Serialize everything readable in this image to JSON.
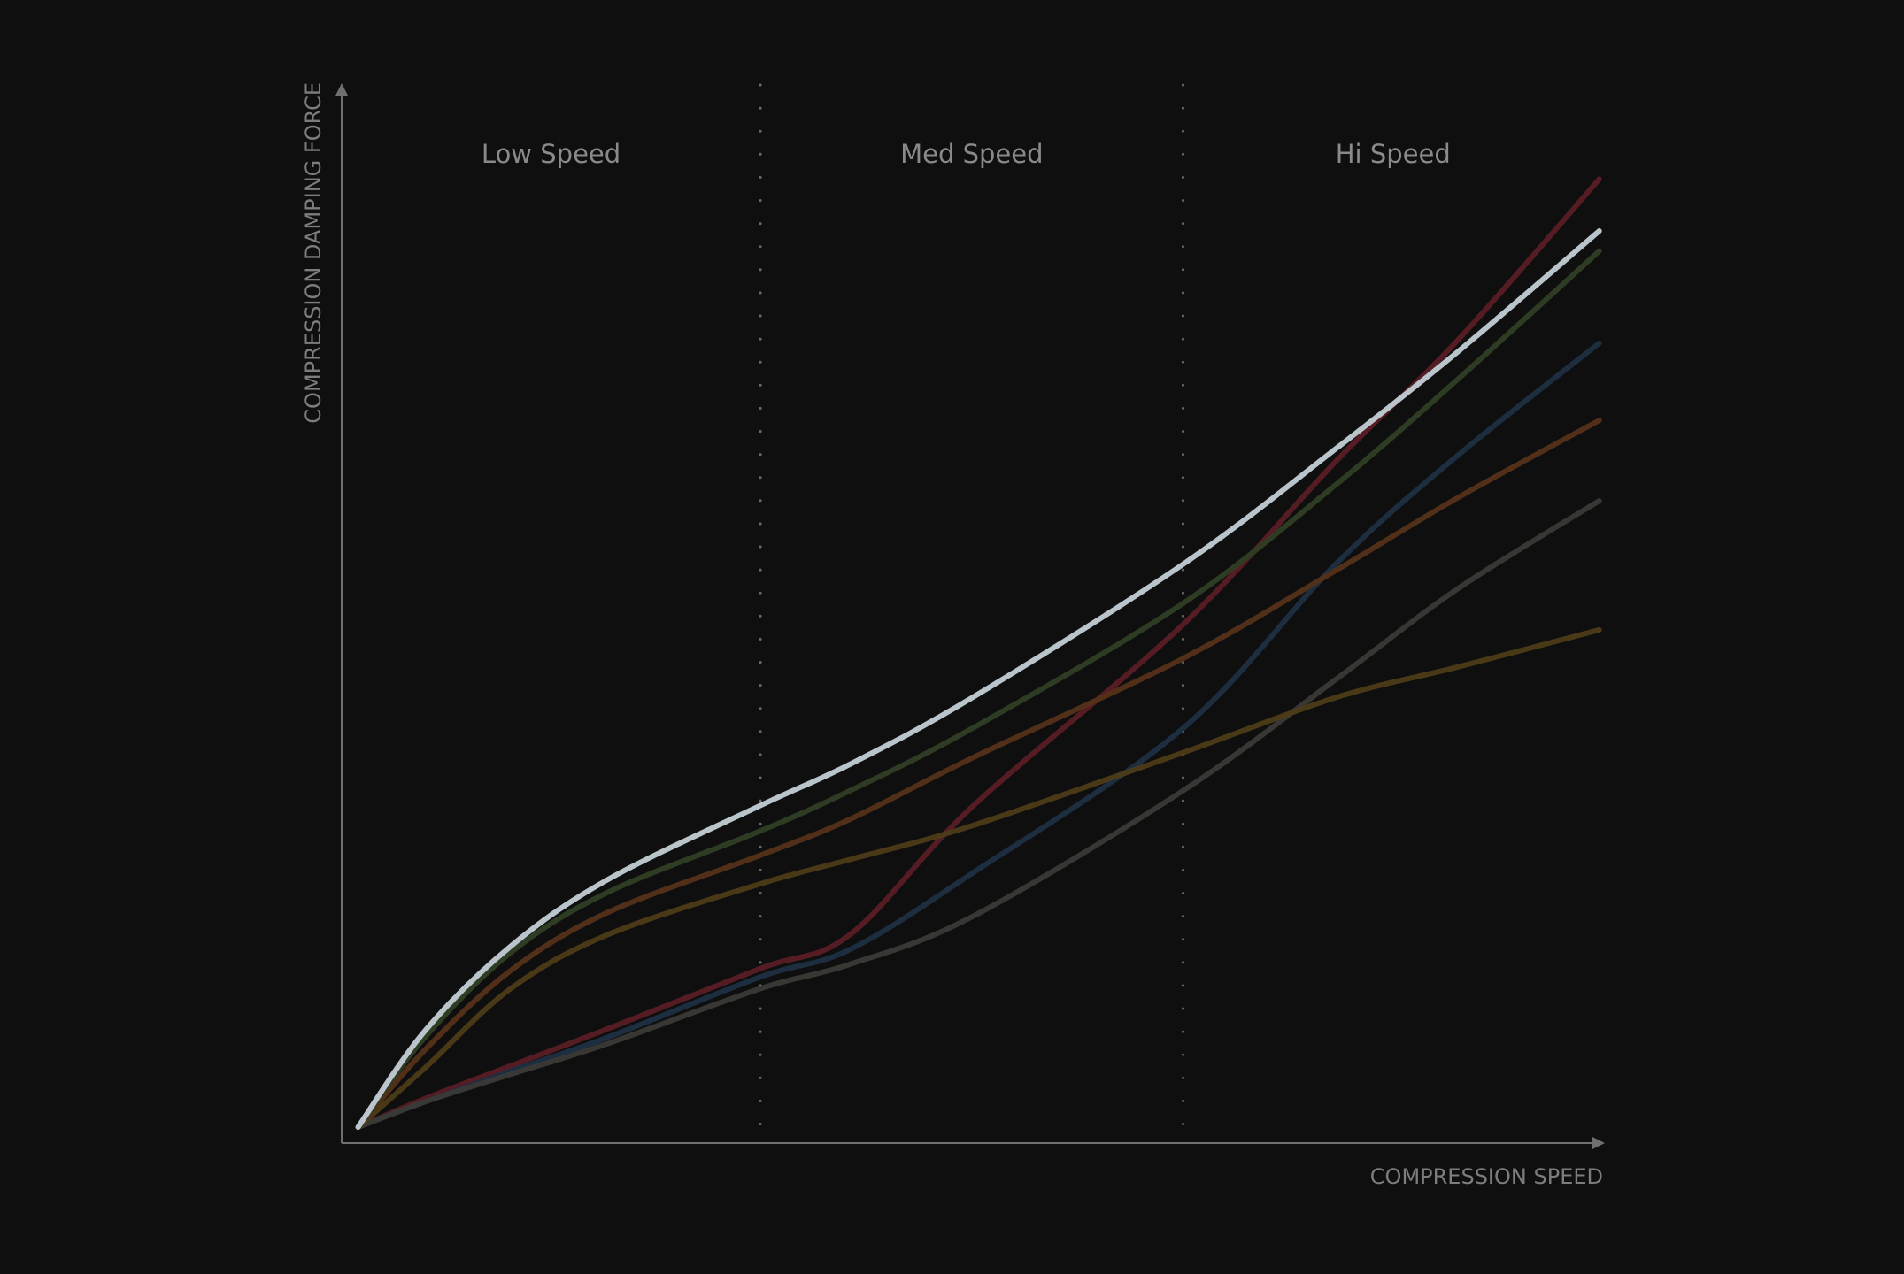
{
  "chart_data": {
    "type": "line",
    "x_label": "COMPRESSION SPEED",
    "y_label": "COMPRESSION DAMPING FORCE",
    "regions": [
      "Low Speed",
      "Med Speed",
      "Hi Speed"
    ],
    "dividers": [
      33.2,
      66.7
    ],
    "xlim": [
      0,
      100
    ],
    "ylim": [
      0,
      100
    ],
    "x": [
      1.3,
      6.6,
      13.4,
      21.1,
      33.2,
      40.3,
      50.0,
      66.7,
      78.8,
      88.5,
      99.7
    ],
    "series": [
      {
        "color": "#5a1d26",
        "values": [
          1.5,
          4.2,
          7.3,
          10.8,
          16.5,
          19.7,
          31.8,
          49.0,
          64.4,
          75.9,
          91.1
        ]
      },
      {
        "color": "#1e3042",
        "values": [
          1.5,
          3.9,
          6.8,
          10.0,
          15.7,
          18.3,
          25.5,
          39.2,
          54.7,
          65.0,
          75.6
        ]
      },
      {
        "color": "#3b3a37",
        "values": [
          1.5,
          3.9,
          6.5,
          9.4,
          14.6,
          16.9,
          21.4,
          33.3,
          43.8,
          52.4,
          60.7
        ]
      },
      {
        "color": "#4d3c18",
        "values": [
          1.5,
          7.1,
          14.6,
          19.7,
          24.5,
          26.8,
          30.0,
          36.9,
          42.1,
          45.0,
          48.5
        ]
      },
      {
        "color": "#55321a",
        "values": [
          1.5,
          8.8,
          16.3,
          21.8,
          27.2,
          30.6,
          36.4,
          45.8,
          54.1,
          61.0,
          68.3
        ]
      },
      {
        "color": "#2f3f24",
        "values": [
          1.5,
          10.0,
          18.0,
          23.7,
          29.5,
          33.3,
          39.2,
          51.0,
          62.2,
          72.2,
          84.3
        ]
      },
      {
        "color": "#c3cfd6",
        "values": [
          1.5,
          10.6,
          18.6,
          24.9,
          31.9,
          35.8,
          42.1,
          54.7,
          65.6,
          74.8,
          86.2
        ]
      }
    ]
  }
}
